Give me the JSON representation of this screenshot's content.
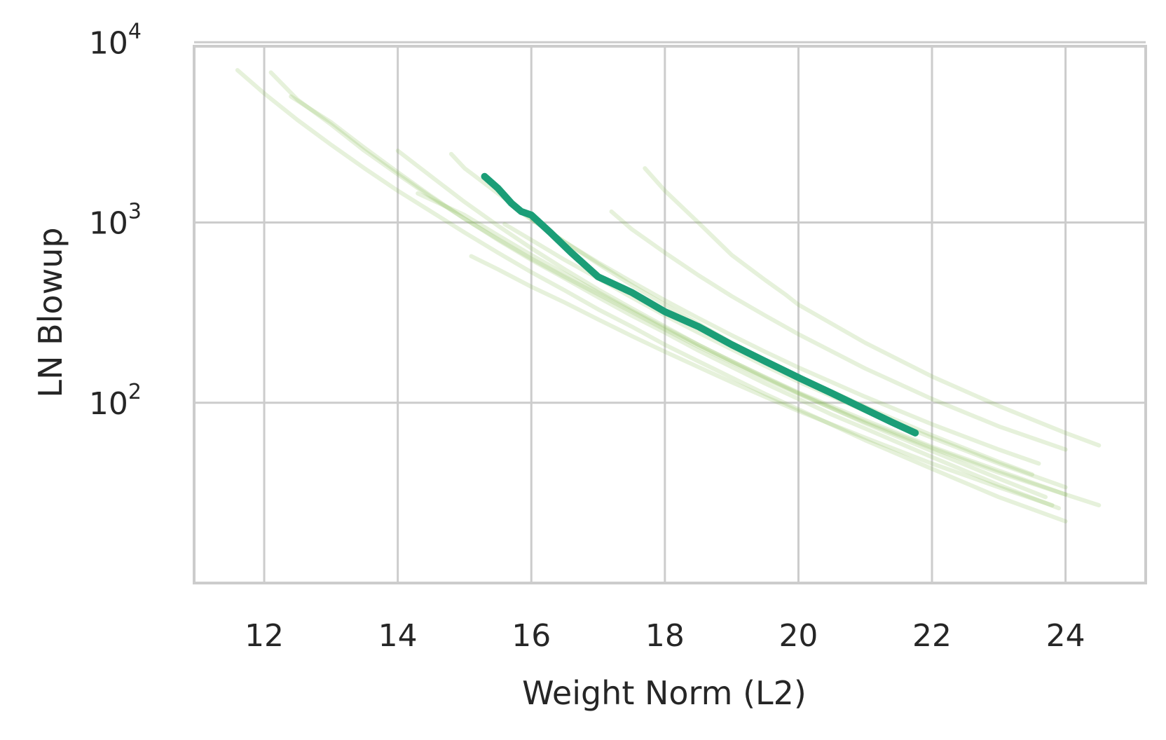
{
  "chart_data": {
    "type": "line",
    "title": "",
    "xlabel": "Weight Norm (L2)",
    "ylabel": "LN Blowup",
    "xlim": [
      10.95,
      25.2
    ],
    "ylim": [
      10,
      9500
    ],
    "yscale": "log",
    "grid": true,
    "legend": "none",
    "xticks": [
      12,
      14,
      16,
      18,
      20,
      22,
      24
    ],
    "yticks": [
      {
        "value": 100,
        "base": "10",
        "exp": "2"
      },
      {
        "value": 1000,
        "base": "10",
        "exp": "3"
      },
      {
        "value": 10000,
        "base": "10",
        "exp": "4"
      }
    ],
    "colors": {
      "highlight": "#1b9e77",
      "background_runs": "#8fbf5a",
      "grid": "#cccccc",
      "frame": "#cccccc"
    },
    "highlight_series": {
      "x": [
        15.3,
        15.5,
        15.7,
        15.85,
        16.0,
        16.3,
        16.6,
        17.0,
        17.5,
        18.0,
        18.5,
        19.0,
        19.5,
        20.0,
        20.5,
        21.0,
        21.4,
        21.75
      ],
      "y": [
        1800,
        1550,
        1280,
        1150,
        1100,
        870,
        680,
        500,
        410,
        320,
        265,
        210,
        170,
        138,
        113,
        92,
        78,
        68
      ]
    },
    "background_series": [
      {
        "x": [
          11.6,
          12.0,
          12.5,
          13.0,
          13.5,
          14.0,
          14.5,
          15.0,
          15.5,
          16.0,
          16.5,
          17.0,
          17.5,
          18.0,
          18.5,
          19.0,
          19.5,
          20.0,
          21.0,
          22.0,
          23.0,
          24.0
        ],
        "y": [
          7000,
          5200,
          3700,
          2700,
          2000,
          1500,
          1150,
          880,
          680,
          530,
          420,
          330,
          265,
          210,
          170,
          138,
          112,
          92,
          62,
          43,
          30,
          22
        ]
      },
      {
        "x": [
          12.1,
          12.5,
          13.0,
          13.5,
          14.0,
          14.5,
          15.0,
          15.5,
          16.0,
          16.5,
          17.0,
          17.5,
          18.0,
          18.5,
          19.0,
          19.5,
          20.0,
          20.5,
          21.0,
          22.0,
          23.0,
          23.9
        ],
        "y": [
          6800,
          4800,
          3500,
          2500,
          1850,
          1380,
          1050,
          800,
          620,
          490,
          385,
          305,
          245,
          195,
          158,
          128,
          105,
          86,
          72,
          50,
          35,
          26
        ]
      },
      {
        "x": [
          12.4,
          13.0,
          13.5,
          14.0,
          14.5,
          15.0,
          15.5,
          16.0,
          16.5,
          17.0,
          17.5,
          18.0,
          18.5,
          19.0,
          19.5,
          20.0,
          21.0,
          22.0,
          23.0,
          24.0,
          24.5
        ],
        "y": [
          5000,
          3600,
          2600,
          1900,
          1400,
          1050,
          810,
          630,
          500,
          400,
          320,
          255,
          205,
          167,
          136,
          112,
          78,
          56,
          41,
          31,
          27
        ]
      },
      {
        "x": [
          14.0,
          14.5,
          15.0,
          15.5,
          16.0,
          16.5,
          17.0,
          17.5,
          18.0,
          18.5,
          19.0,
          19.5,
          20.0,
          21.0,
          22.0,
          23.0,
          23.7
        ],
        "y": [
          2500,
          1800,
          1300,
          960,
          720,
          550,
          425,
          335,
          265,
          210,
          170,
          138,
          113,
          77,
          54,
          38,
          30
        ]
      },
      {
        "x": [
          14.8,
          15.0,
          15.5,
          16.0,
          16.5,
          17.0,
          17.5,
          18.0,
          18.5,
          19.0,
          19.5,
          20.0,
          21.0,
          22.0,
          23.0,
          23.5
        ],
        "y": [
          2400,
          2000,
          1450,
          1050,
          780,
          590,
          450,
          350,
          275,
          215,
          172,
          140,
          95,
          66,
          47,
          40
        ]
      },
      {
        "x": [
          14.3,
          15.0,
          15.5,
          16.0,
          16.5,
          17.0,
          17.5,
          18.0,
          18.5,
          19.0,
          19.5,
          20.0,
          21.0,
          22.0,
          23.0,
          24.0
        ],
        "y": [
          1450,
          1100,
          850,
          660,
          520,
          410,
          325,
          260,
          210,
          170,
          139,
          114,
          80,
          57,
          42,
          31
        ]
      },
      {
        "x": [
          15.1,
          15.5,
          16.0,
          16.5,
          17.0,
          17.5,
          18.0,
          18.5,
          19.0,
          19.5,
          20.0,
          21.0,
          22.0,
          23.0,
          23.8
        ],
        "y": [
          650,
          550,
          440,
          360,
          290,
          235,
          192,
          158,
          130,
          108,
          90,
          64,
          46,
          34,
          27
        ]
      },
      {
        "x": [
          15.6,
          16.0,
          16.5,
          17.0,
          17.5,
          18.0,
          18.5,
          19.0,
          19.5,
          20.0,
          21.0,
          22.0,
          23.0,
          24.0
        ],
        "y": [
          980,
          800,
          620,
          490,
          385,
          305,
          245,
          198,
          160,
          131,
          90,
          64,
          46,
          34
        ]
      },
      {
        "x": [
          15.9,
          16.5,
          17.0,
          17.5,
          18.0,
          18.5,
          19.0,
          19.5,
          20.0,
          21.0,
          22.0,
          23.0,
          23.6
        ],
        "y": [
          1100,
          780,
          600,
          470,
          370,
          295,
          237,
          192,
          157,
          108,
          76,
          55,
          46
        ]
      },
      {
        "x": [
          17.2,
          17.5,
          18.0,
          18.5,
          19.0,
          19.5,
          20.0,
          21.0,
          22.0,
          23.0,
          24.0
        ],
        "y": [
          1150,
          920,
          680,
          510,
          390,
          305,
          240,
          155,
          105,
          74,
          55
        ]
      },
      {
        "x": [
          17.7,
          18.0,
          18.5,
          18.8,
          19.0,
          19.5,
          19.8,
          20.0,
          21.0,
          22.0,
          23.0,
          24.0,
          24.5
        ],
        "y": [
          2000,
          1500,
          1000,
          780,
          660,
          480,
          400,
          350,
          215,
          140,
          96,
          68,
          58
        ]
      }
    ]
  }
}
